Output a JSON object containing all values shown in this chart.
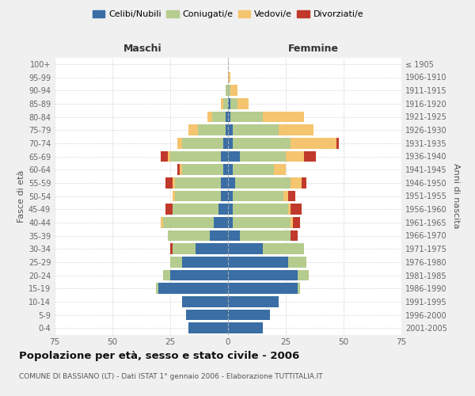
{
  "age_groups": [
    "0-4",
    "5-9",
    "10-14",
    "15-19",
    "20-24",
    "25-29",
    "30-34",
    "35-39",
    "40-44",
    "45-49",
    "50-54",
    "55-59",
    "60-64",
    "65-69",
    "70-74",
    "75-79",
    "80-84",
    "85-89",
    "90-94",
    "95-99",
    "100+"
  ],
  "birth_years": [
    "2001-2005",
    "1996-2000",
    "1991-1995",
    "1986-1990",
    "1981-1985",
    "1976-1980",
    "1971-1975",
    "1966-1970",
    "1961-1965",
    "1956-1960",
    "1951-1955",
    "1946-1950",
    "1941-1945",
    "1936-1940",
    "1931-1935",
    "1926-1930",
    "1921-1925",
    "1916-1920",
    "1911-1915",
    "1906-1910",
    "≤ 1905"
  ],
  "male_celibi": [
    17,
    18,
    20,
    30,
    25,
    20,
    14,
    8,
    6,
    4,
    3,
    3,
    2,
    3,
    2,
    1,
    1,
    0,
    0,
    0,
    0
  ],
  "male_coniugati": [
    0,
    0,
    0,
    1,
    3,
    5,
    10,
    18,
    22,
    20,
    20,
    20,
    18,
    22,
    18,
    12,
    6,
    2,
    1,
    0,
    0
  ],
  "male_vedovi": [
    0,
    0,
    0,
    0,
    0,
    0,
    0,
    0,
    1,
    0,
    1,
    1,
    1,
    1,
    2,
    4,
    2,
    1,
    0,
    0,
    0
  ],
  "male_divorziati": [
    0,
    0,
    0,
    0,
    0,
    0,
    1,
    0,
    0,
    3,
    0,
    3,
    1,
    3,
    0,
    0,
    0,
    0,
    0,
    0,
    0
  ],
  "female_celibi": [
    15,
    18,
    22,
    30,
    30,
    26,
    15,
    5,
    2,
    2,
    2,
    3,
    2,
    5,
    2,
    2,
    1,
    1,
    0,
    0,
    0
  ],
  "female_coniugati": [
    0,
    0,
    0,
    1,
    5,
    8,
    18,
    22,
    25,
    24,
    22,
    24,
    18,
    20,
    25,
    20,
    14,
    3,
    1,
    0,
    0
  ],
  "female_vedovi": [
    0,
    0,
    0,
    0,
    0,
    0,
    0,
    0,
    1,
    1,
    2,
    5,
    5,
    8,
    20,
    15,
    18,
    5,
    3,
    1,
    0
  ],
  "female_divorziati": [
    0,
    0,
    0,
    0,
    0,
    0,
    0,
    3,
    3,
    5,
    3,
    2,
    0,
    5,
    1,
    0,
    0,
    0,
    0,
    0,
    0
  ],
  "colors": {
    "celibi": "#3a6ea5",
    "coniugati": "#b5cc8e",
    "vedovi": "#f5c46e",
    "divorziati": "#c0392b"
  },
  "xlim": 75,
  "title": "Popolazione per età, sesso e stato civile - 2006",
  "subtitle": "COMUNE DI BASSIANO (LT) - Dati ISTAT 1° gennaio 2006 - Elaborazione TUTTITALIA.IT",
  "ylabel_left": "Fasce di età",
  "ylabel_right": "Anni di nascita",
  "xlabel_left": "Maschi",
  "xlabel_right": "Femmine",
  "legend_labels": [
    "Celibi/Nubili",
    "Coniugati/e",
    "Vedovi/e",
    "Divorziati/e"
  ],
  "bg_color": "#f0f0f0",
  "plot_bg": "#ffffff"
}
